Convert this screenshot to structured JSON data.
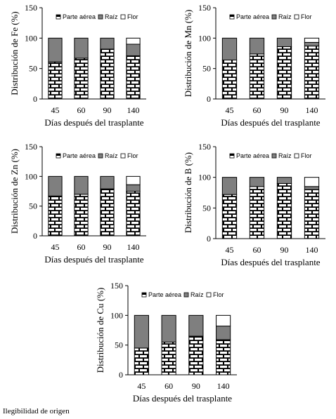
{
  "chart_data": [
    {
      "type": "bar",
      "stacked": true,
      "ylabel": "Distribución de Fe (%)",
      "xlabel": "Días después del trasplante",
      "categories": [
        "45",
        "60",
        "90",
        "140"
      ],
      "ylim": [
        0,
        150
      ],
      "yticks": [
        0,
        50,
        100,
        150
      ],
      "legend": "top-right",
      "series": [
        {
          "name": "Parte aérea",
          "values": [
            61,
            67,
            82,
            71
          ]
        },
        {
          "name": "Raíz",
          "values": [
            39,
            33,
            18,
            19
          ]
        },
        {
          "name": "Flor",
          "values": [
            0,
            0,
            0,
            10
          ]
        }
      ]
    },
    {
      "type": "bar",
      "stacked": true,
      "ylabel": "Distribución de Mn (%)",
      "xlabel": "Días después del trasplante",
      "categories": [
        "45",
        "60",
        "90",
        "140"
      ],
      "ylim": [
        0,
        150
      ],
      "yticks": [
        0,
        50,
        100,
        150
      ],
      "legend": "top-right",
      "series": [
        {
          "name": "Parte aérea",
          "values": [
            64,
            74,
            86,
            87
          ]
        },
        {
          "name": "Raíz",
          "values": [
            36,
            26,
            14,
            6
          ]
        },
        {
          "name": "Flor",
          "values": [
            0,
            0,
            0,
            7
          ]
        }
      ]
    },
    {
      "type": "bar",
      "stacked": true,
      "ylabel": "Distribución de Zn (%)",
      "xlabel": "Días después del trasplante",
      "categories": [
        "45",
        "60",
        "90",
        "140"
      ],
      "ylim": [
        0,
        150
      ],
      "yticks": [
        0,
        50,
        100,
        150
      ],
      "legend": "top-right",
      "series": [
        {
          "name": "Parte aérea",
          "values": [
            67,
            70,
            79,
            75
          ]
        },
        {
          "name": "Raíz",
          "values": [
            33,
            30,
            21,
            11
          ]
        },
        {
          "name": "Flor",
          "values": [
            0,
            0,
            0,
            14
          ]
        }
      ]
    },
    {
      "type": "bar",
      "stacked": true,
      "ylabel": "Distribución de B (%)",
      "xlabel": "Días después del trasplante",
      "categories": [
        "45",
        "60",
        "90",
        "140"
      ],
      "ylim": [
        0,
        150
      ],
      "yticks": [
        0,
        50,
        100,
        150
      ],
      "legend": "top-right",
      "series": [
        {
          "name": "Parte aérea",
          "values": [
            72,
            85,
            90,
            80
          ]
        },
        {
          "name": "Raíz",
          "values": [
            28,
            15,
            10,
            5
          ]
        },
        {
          "name": "Flor",
          "values": [
            0,
            0,
            0,
            15
          ]
        }
      ]
    },
    {
      "type": "bar",
      "stacked": true,
      "ylabel": "Distribución de Cu (%)",
      "xlabel": "Días después del trasplante",
      "categories": [
        "45",
        "60",
        "90",
        "140"
      ],
      "ylim": [
        0,
        150
      ],
      "yticks": [
        0,
        50,
        100,
        150
      ],
      "legend": "top-right",
      "series": [
        {
          "name": "Parte aérea",
          "values": [
            45,
            55,
            65,
            59
          ]
        },
        {
          "name": "Raíz",
          "values": [
            55,
            45,
            35,
            23
          ]
        },
        {
          "name": "Flor",
          "values": [
            0,
            0,
            0,
            18
          ]
        }
      ]
    }
  ],
  "colors": {
    "parte_aerea_fill": "#ffffff",
    "parte_aerea_pattern": "#000000",
    "raiz": "#7f7f7f",
    "flor": "#ffffff",
    "axis": "#000000"
  },
  "footnote": "Ilegibilidad de origen"
}
